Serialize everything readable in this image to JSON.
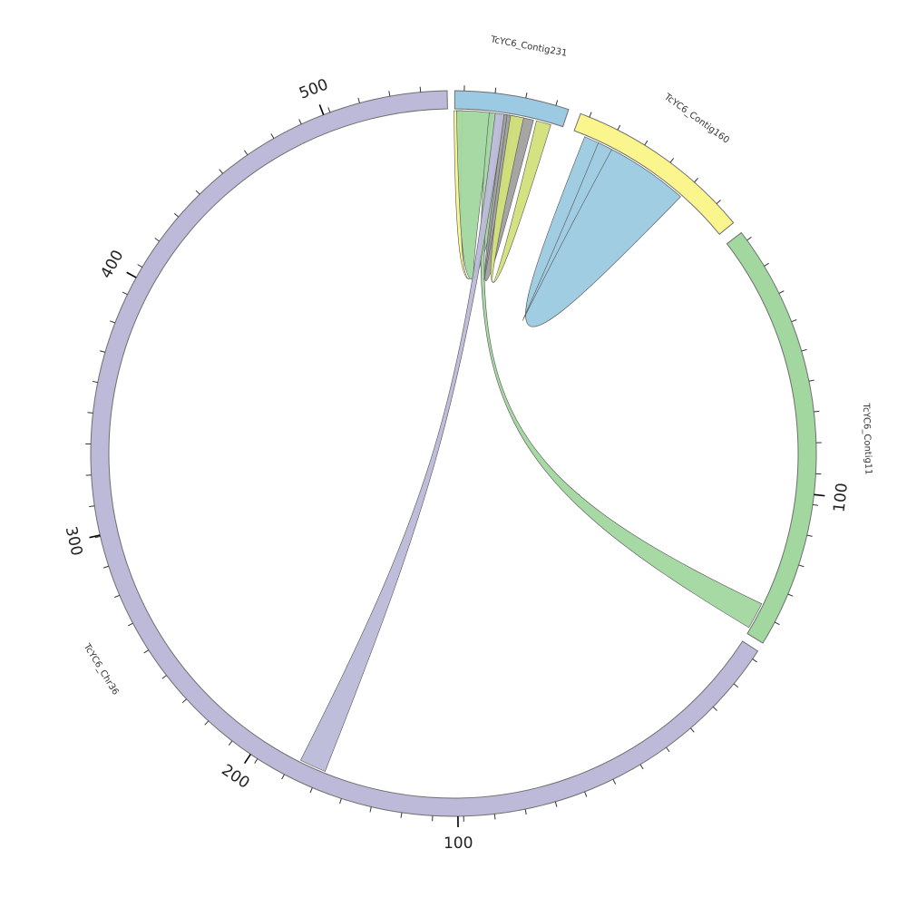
{
  "segments": [
    {
      "id": "chr36",
      "name": "TcYC6_Chr36",
      "color": "#bcbad8",
      "length": 560,
      "major_ticks": [
        100,
        200,
        300,
        400,
        500
      ]
    },
    {
      "id": "c231",
      "name": "TcYC6_Contig231",
      "color": "#9ccae2",
      "length": 40,
      "major_ticks": []
    },
    {
      "id": "c160",
      "name": "TcYC6_Contig160",
      "color": "#fbf58e",
      "length": 80,
      "major_ticks": []
    },
    {
      "id": "c11",
      "name": "TcYC6_Contig11",
      "color": "#a2d7a0",
      "length": 190,
      "major_ticks": [
        100
      ]
    }
  ],
  "links": [
    {
      "from": "c231",
      "to": "c231",
      "color": "#fbf58e"
    },
    {
      "from": "c231",
      "to": "c231",
      "color": "#a2d7a0"
    },
    {
      "from": "c231",
      "to": "c11",
      "color": "#a2d7a0"
    },
    {
      "from": "c231",
      "to": "chr36",
      "color": "#bcbad8"
    },
    {
      "from": "c231",
      "to": "c231",
      "color": "#a0a0a0"
    },
    {
      "from": "c231",
      "to": "c231",
      "color": "#d2e07a"
    },
    {
      "from": "c160",
      "to": "c160",
      "color": "#9ccae2"
    }
  ]
}
